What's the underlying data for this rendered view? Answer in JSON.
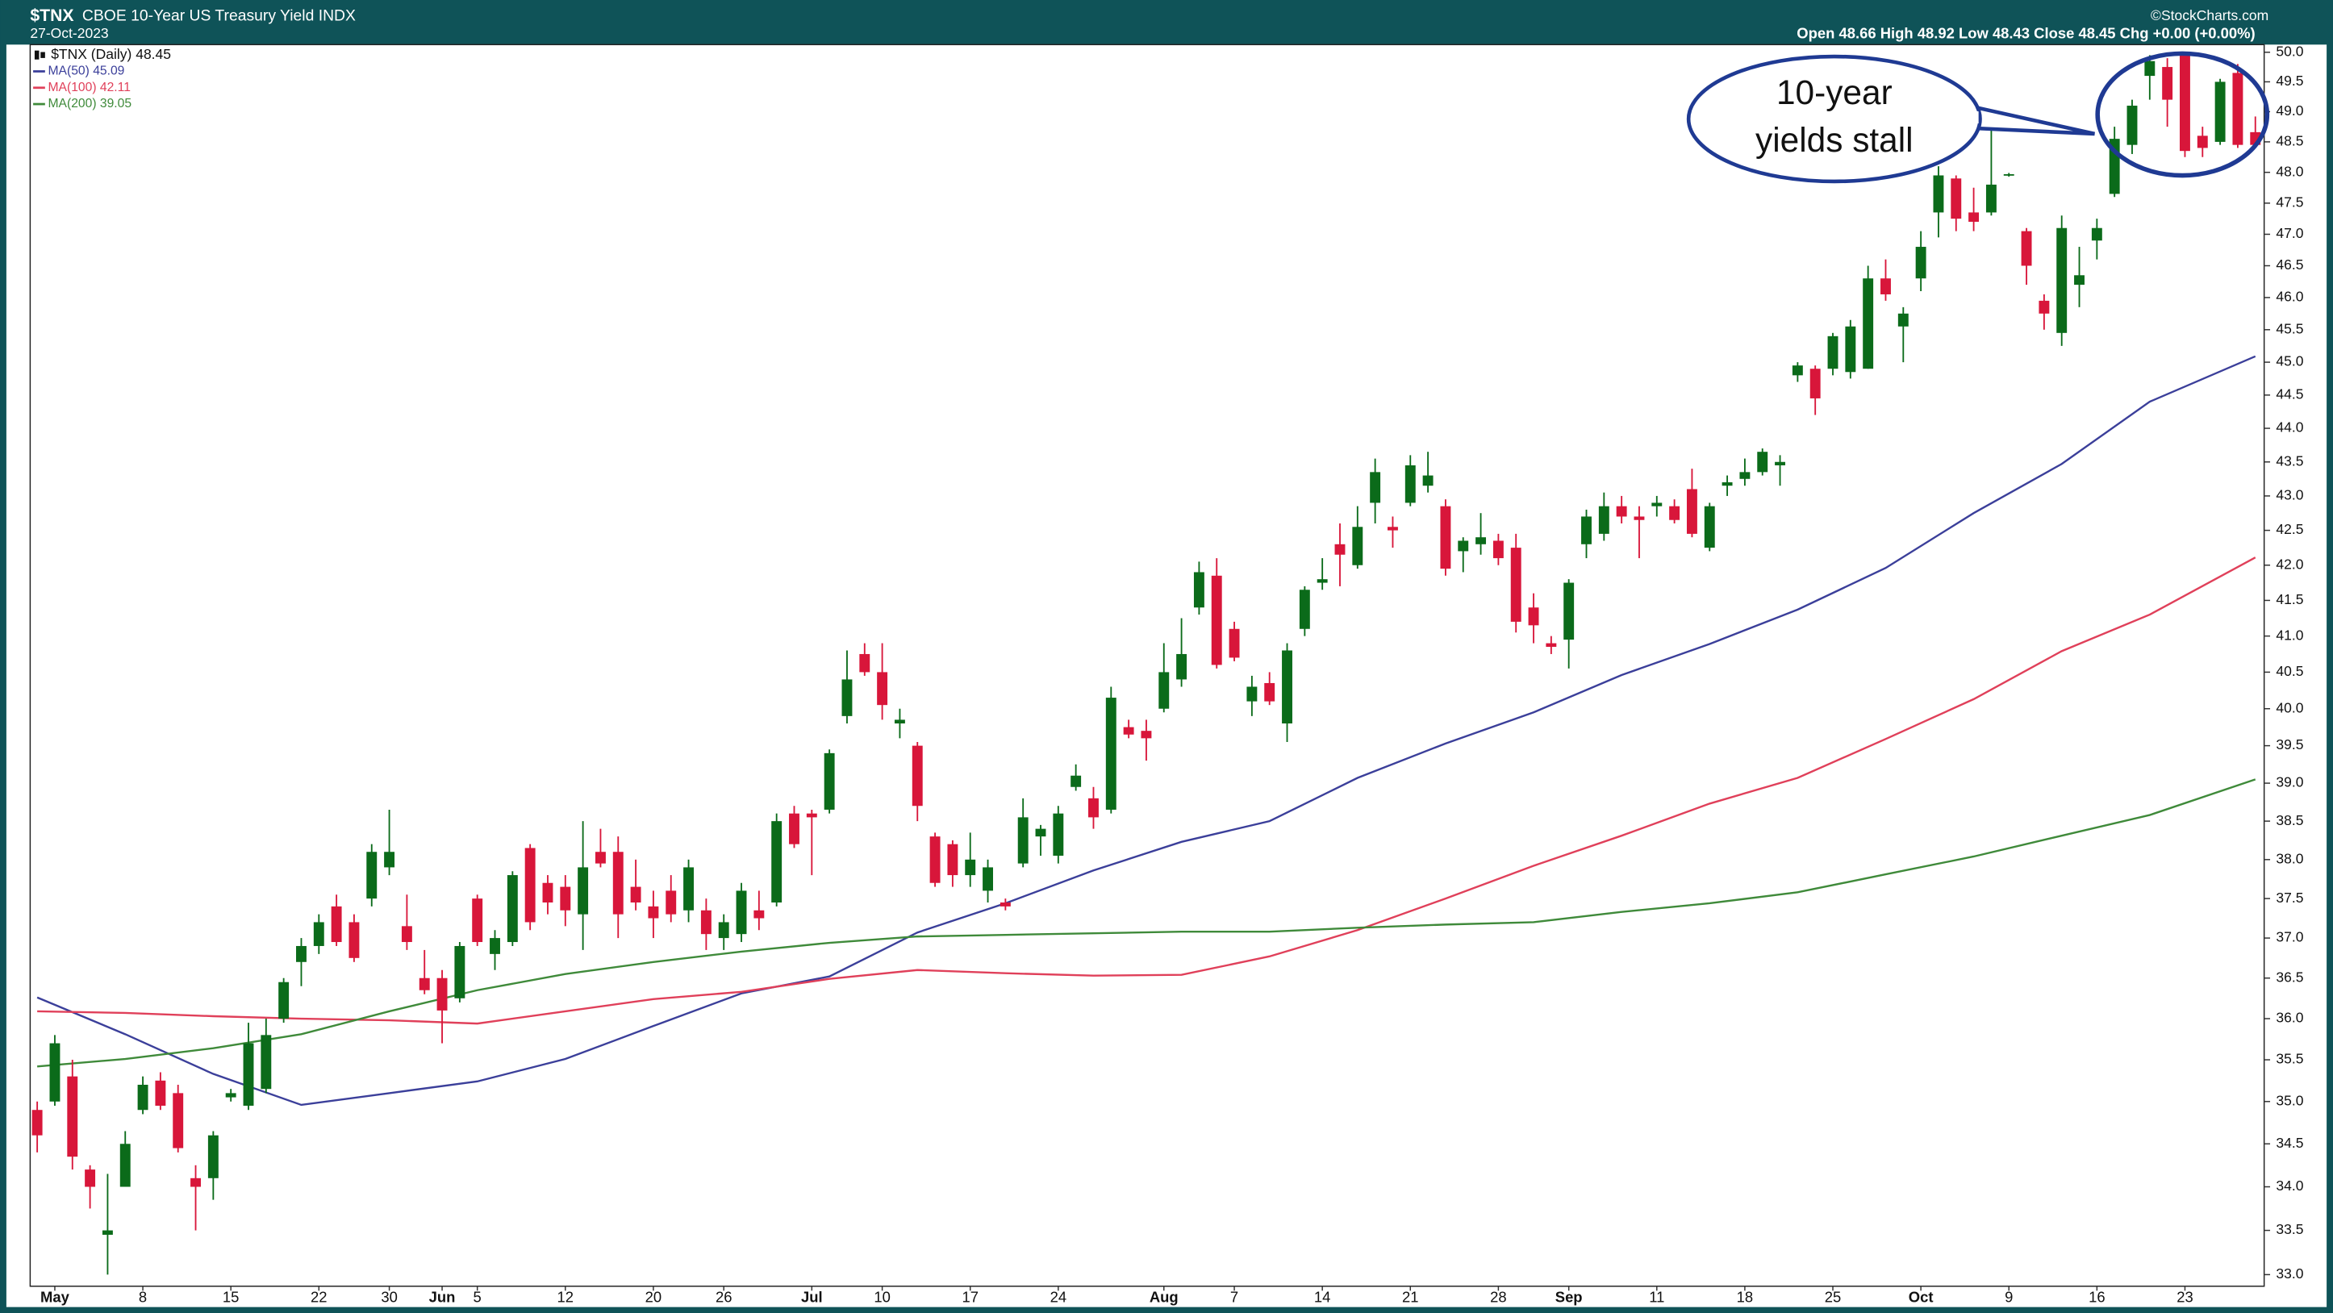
{
  "chart_data": {
    "type": "candlestick",
    "symbol": "$TNX",
    "title": "CBOE 10-Year US Treasury Yield INDX",
    "date": "27-Oct-2023",
    "quote": "Open 48.66 High 48.92 Low 48.43 Close 48.45 Chg +0.00 (+0.00%)",
    "credit": "©StockCharts.com",
    "price_legend": "$TNX (Daily) 48.45",
    "annotation": [
      "10-year",
      "yields stall"
    ],
    "up_color": "#0b6b1a",
    "down_color": "#d8163a",
    "log_scale": true,
    "grid": false,
    "xlim": [
      -0.4,
      126.5
    ],
    "ylim": [
      32.87,
      50.13
    ],
    "xticks": [
      {
        "value": 1,
        "label": "May"
      },
      {
        "value": 6,
        "label": "8"
      },
      {
        "value": 11,
        "label": "15"
      },
      {
        "value": 16,
        "label": "22"
      },
      {
        "value": 20,
        "label": "30"
      },
      {
        "value": 23,
        "label": "Jun"
      },
      {
        "value": 25,
        "label": "5"
      },
      {
        "value": 30,
        "label": "12"
      },
      {
        "value": 35,
        "label": "20"
      },
      {
        "value": 39,
        "label": "26"
      },
      {
        "value": 44,
        "label": "Jul"
      },
      {
        "value": 48,
        "label": "10"
      },
      {
        "value": 53,
        "label": "17"
      },
      {
        "value": 58,
        "label": "24"
      },
      {
        "value": 64,
        "label": "Aug"
      },
      {
        "value": 68,
        "label": "7"
      },
      {
        "value": 73,
        "label": "14"
      },
      {
        "value": 78,
        "label": "21"
      },
      {
        "value": 83,
        "label": "28"
      },
      {
        "value": 87,
        "label": "Sep"
      },
      {
        "value": 92,
        "label": "11"
      },
      {
        "value": 97,
        "label": "18"
      },
      {
        "value": 102,
        "label": "25"
      },
      {
        "value": 107,
        "label": "Oct"
      },
      {
        "value": 112,
        "label": "9"
      },
      {
        "value": 117,
        "label": "16"
      },
      {
        "value": 122,
        "label": "23"
      }
    ],
    "yticks": [
      {
        "value": 33.0,
        "label": "33.0"
      },
      {
        "value": 33.5,
        "label": "33.5"
      },
      {
        "value": 34.0,
        "label": "34.0"
      },
      {
        "value": 34.5,
        "label": "34.5"
      },
      {
        "value": 35.0,
        "label": "35.0"
      },
      {
        "value": 35.5,
        "label": "35.5"
      },
      {
        "value": 36.0,
        "label": "36.0"
      },
      {
        "value": 36.5,
        "label": "36.5"
      },
      {
        "value": 37.0,
        "label": "37.0"
      },
      {
        "value": 37.5,
        "label": "37.5"
      },
      {
        "value": 38.0,
        "label": "38.0"
      },
      {
        "value": 38.5,
        "label": "38.5"
      },
      {
        "value": 39.0,
        "label": "39.0"
      },
      {
        "value": 39.5,
        "label": "39.5"
      },
      {
        "value": 40.0,
        "label": "40.0"
      },
      {
        "value": 40.5,
        "label": "40.5"
      },
      {
        "value": 41.0,
        "label": "41.0"
      },
      {
        "value": 41.5,
        "label": "41.5"
      },
      {
        "value": 42.0,
        "label": "42.0"
      },
      {
        "value": 42.5,
        "label": "42.5"
      },
      {
        "value": 43.0,
        "label": "43.0"
      },
      {
        "value": 43.5,
        "label": "43.5"
      },
      {
        "value": 44.0,
        "label": "44.0"
      },
      {
        "value": 44.5,
        "label": "44.5"
      },
      {
        "value": 45.0,
        "label": "45.0"
      },
      {
        "value": 45.5,
        "label": "45.5"
      },
      {
        "value": 46.0,
        "label": "46.0"
      },
      {
        "value": 46.5,
        "label": "46.5"
      },
      {
        "value": 47.0,
        "label": "47.0"
      },
      {
        "value": 47.5,
        "label": "47.5"
      },
      {
        "value": 48.0,
        "label": "48.0"
      },
      {
        "value": 48.5,
        "label": "48.5"
      },
      {
        "value": 49.0,
        "label": "49.0"
      },
      {
        "value": 49.5,
        "label": "49.5"
      },
      {
        "value": 50.0,
        "label": "50.0"
      }
    ],
    "open": [
      34.9,
      35.0,
      35.3,
      34.2,
      33.45,
      34.0,
      34.9,
      35.25,
      35.1,
      34.1,
      34.1,
      35.05,
      34.95,
      35.15,
      36.0,
      36.7,
      36.9,
      37.4,
      37.2,
      37.5,
      37.9,
      37.15,
      36.5,
      36.5,
      36.25,
      37.5,
      36.8,
      36.95,
      38.15,
      37.7,
      37.65,
      37.3,
      38.1,
      38.1,
      37.65,
      37.4,
      37.6,
      37.35,
      37.35,
      37.0,
      37.05,
      37.35,
      37.45,
      38.6,
      38.6,
      38.65,
      39.9,
      40.75,
      40.5,
      39.8,
      39.5,
      38.3,
      38.2,
      37.8,
      37.6,
      37.45,
      37.95,
      38.3,
      38.05,
      38.95,
      38.8,
      38.65,
      39.75,
      39.7,
      40.0,
      40.4,
      41.4,
      41.85,
      41.1,
      40.1,
      40.35,
      39.8,
      41.1,
      41.75,
      42.3,
      42.0,
      42.9,
      42.55,
      42.9,
      43.15,
      42.85,
      42.2,
      42.3,
      42.35,
      42.25,
      41.4,
      40.9,
      40.95,
      42.3,
      42.45,
      42.85,
      42.7,
      42.85,
      42.85,
      43.1,
      42.25,
      43.15,
      43.25,
      43.35,
      43.45,
      44.8,
      44.9,
      44.9,
      44.85,
      44.9,
      46.3,
      45.55,
      46.3,
      47.35,
      47.9,
      47.35,
      47.35,
      47.95,
      47.05,
      45.95,
      45.45,
      46.2,
      46.9,
      47.65,
      48.45,
      49.6,
      49.75,
      49.95,
      48.6,
      48.5,
      49.65,
      48.66
    ],
    "high": [
      35.0,
      35.8,
      35.5,
      34.25,
      34.15,
      34.65,
      35.3,
      35.35,
      35.2,
      34.25,
      34.65,
      35.15,
      35.95,
      36.0,
      36.5,
      37.0,
      37.3,
      37.55,
      37.3,
      38.2,
      38.65,
      37.55,
      36.85,
      36.6,
      36.95,
      37.55,
      37.1,
      37.85,
      38.2,
      37.8,
      37.8,
      38.5,
      38.4,
      38.3,
      38.0,
      37.6,
      37.8,
      38.0,
      37.5,
      37.3,
      37.7,
      37.6,
      38.6,
      38.7,
      38.65,
      39.45,
      40.8,
      40.9,
      40.9,
      40.0,
      39.55,
      38.35,
      38.25,
      38.35,
      38.0,
      37.5,
      38.8,
      38.45,
      38.7,
      39.25,
      38.95,
      40.3,
      39.85,
      39.85,
      40.9,
      41.25,
      42.05,
      42.1,
      41.2,
      40.45,
      40.5,
      40.9,
      41.7,
      42.1,
      42.6,
      42.85,
      43.55,
      42.7,
      43.6,
      43.65,
      42.95,
      42.4,
      42.75,
      42.45,
      42.45,
      41.6,
      41.0,
      41.8,
      42.8,
      43.05,
      43.0,
      42.85,
      43.0,
      42.95,
      43.4,
      42.9,
      43.3,
      43.55,
      43.7,
      43.6,
      45.0,
      44.95,
      45.45,
      45.65,
      46.5,
      46.6,
      45.85,
      47.05,
      48.1,
      47.95,
      47.75,
      48.8,
      47.99,
      47.1,
      46.05,
      47.3,
      46.8,
      47.25,
      48.75,
      49.2,
      49.95,
      49.9,
      50.0,
      48.75,
      49.55,
      49.8,
      48.92
    ],
    "low": [
      34.4,
      34.95,
      34.2,
      33.75,
      33.0,
      34.0,
      34.85,
      34.9,
      34.4,
      33.5,
      33.85,
      35.0,
      34.9,
      35.1,
      35.95,
      36.4,
      36.8,
      36.9,
      36.7,
      37.4,
      37.8,
      36.85,
      36.3,
      35.7,
      36.2,
      36.9,
      36.6,
      36.9,
      37.1,
      37.3,
      37.15,
      36.85,
      37.9,
      37.0,
      37.35,
      37.0,
      37.2,
      37.2,
      36.85,
      36.85,
      36.95,
      37.1,
      37.4,
      38.15,
      37.8,
      38.6,
      39.8,
      40.45,
      39.85,
      39.6,
      38.5,
      37.65,
      37.65,
      37.65,
      37.45,
      37.35,
      37.9,
      38.05,
      37.95,
      38.9,
      38.4,
      38.6,
      39.6,
      39.3,
      39.95,
      40.3,
      41.3,
      40.55,
      40.65,
      39.9,
      40.05,
      39.55,
      41.0,
      41.65,
      41.7,
      41.95,
      42.6,
      42.25,
      42.85,
      43.05,
      41.85,
      41.9,
      42.15,
      42.0,
      41.05,
      40.9,
      40.75,
      40.55,
      42.1,
      42.35,
      42.6,
      42.1,
      42.7,
      42.6,
      42.4,
      42.2,
      43.0,
      43.15,
      43.3,
      43.15,
      44.7,
      44.2,
      44.8,
      44.75,
      44.9,
      45.95,
      45.0,
      46.1,
      46.95,
      47.05,
      47.05,
      47.3,
      47.93,
      46.2,
      45.5,
      45.25,
      45.85,
      46.6,
      47.6,
      48.3,
      49.2,
      48.75,
      48.25,
      48.25,
      48.45,
      48.4,
      48.43
    ],
    "close": [
      34.6,
      35.7,
      34.35,
      34.0,
      33.5,
      34.5,
      35.2,
      34.95,
      34.45,
      34.0,
      34.6,
      35.1,
      35.7,
      35.8,
      36.45,
      36.9,
      37.2,
      36.95,
      36.75,
      38.1,
      38.1,
      36.95,
      36.35,
      36.1,
      36.9,
      36.95,
      37.0,
      37.8,
      37.2,
      37.45,
      37.35,
      37.9,
      37.95,
      37.3,
      37.45,
      37.25,
      37.3,
      37.9,
      37.05,
      37.2,
      37.6,
      37.25,
      38.5,
      38.2,
      38.55,
      39.4,
      40.4,
      40.5,
      40.05,
      39.85,
      38.7,
      37.7,
      37.8,
      38.0,
      37.9,
      37.4,
      38.55,
      38.4,
      38.6,
      39.1,
      38.55,
      40.15,
      39.65,
      39.6,
      40.5,
      40.75,
      41.9,
      40.6,
      40.7,
      40.3,
      40.1,
      40.8,
      41.65,
      41.8,
      42.15,
      42.55,
      43.35,
      42.5,
      43.45,
      43.3,
      41.95,
      42.35,
      42.4,
      42.1,
      41.2,
      41.15,
      40.85,
      41.75,
      42.7,
      42.85,
      42.7,
      42.65,
      42.9,
      42.65,
      42.45,
      42.85,
      43.2,
      43.35,
      43.65,
      43.5,
      44.95,
      44.45,
      45.4,
      45.55,
      46.3,
      46.05,
      45.75,
      46.8,
      47.95,
      47.25,
      47.2,
      47.8,
      47.97,
      46.5,
      45.75,
      47.1,
      46.35,
      47.1,
      48.55,
      49.1,
      49.85,
      49.2,
      48.35,
      48.4,
      49.5,
      48.45,
      48.45
    ],
    "series": [
      {
        "name": "MA(50) 45.09",
        "color": "#3b3f9a",
        "x": [
          0,
          5,
          10,
          15,
          20,
          25,
          30,
          35,
          40,
          45,
          50,
          55,
          60,
          65,
          70,
          75,
          80,
          85,
          90,
          95,
          100,
          105,
          110,
          115,
          120,
          126
        ],
        "values": [
          36.26,
          35.81,
          35.33,
          34.96,
          35.1,
          35.24,
          35.51,
          35.91,
          36.31,
          36.52,
          37.07,
          37.44,
          37.86,
          38.23,
          38.5,
          39.07,
          39.53,
          39.95,
          40.46,
          40.89,
          41.37,
          41.96,
          42.75,
          43.47,
          44.4,
          45.09
        ]
      },
      {
        "name": "MA(100) 42.11",
        "color": "#e0405a",
        "x": [
          0,
          5,
          10,
          15,
          20,
          25,
          30,
          35,
          40,
          45,
          50,
          55,
          60,
          65,
          70,
          75,
          80,
          85,
          90,
          95,
          100,
          105,
          110,
          115,
          120,
          126
        ],
        "values": [
          36.09,
          36.07,
          36.03,
          36.0,
          35.98,
          35.94,
          36.09,
          36.24,
          36.33,
          36.49,
          36.6,
          36.56,
          36.53,
          36.54,
          36.77,
          37.1,
          37.5,
          37.92,
          38.31,
          38.73,
          39.07,
          39.59,
          40.13,
          40.79,
          41.3,
          42.11
        ]
      },
      {
        "name": "MA(200) 39.05",
        "color": "#3f8a3a",
        "x": [
          0,
          5,
          10,
          15,
          20,
          25,
          30,
          35,
          40,
          45,
          50,
          55,
          60,
          65,
          70,
          75,
          80,
          85,
          90,
          95,
          100,
          105,
          110,
          115,
          120,
          126
        ],
        "values": [
          35.42,
          35.51,
          35.64,
          35.81,
          36.09,
          36.35,
          36.55,
          36.7,
          36.83,
          36.94,
          37.02,
          37.04,
          37.06,
          37.08,
          37.08,
          37.13,
          37.17,
          37.2,
          37.33,
          37.44,
          37.58,
          37.81,
          38.04,
          38.31,
          38.58,
          39.05
        ]
      }
    ]
  }
}
